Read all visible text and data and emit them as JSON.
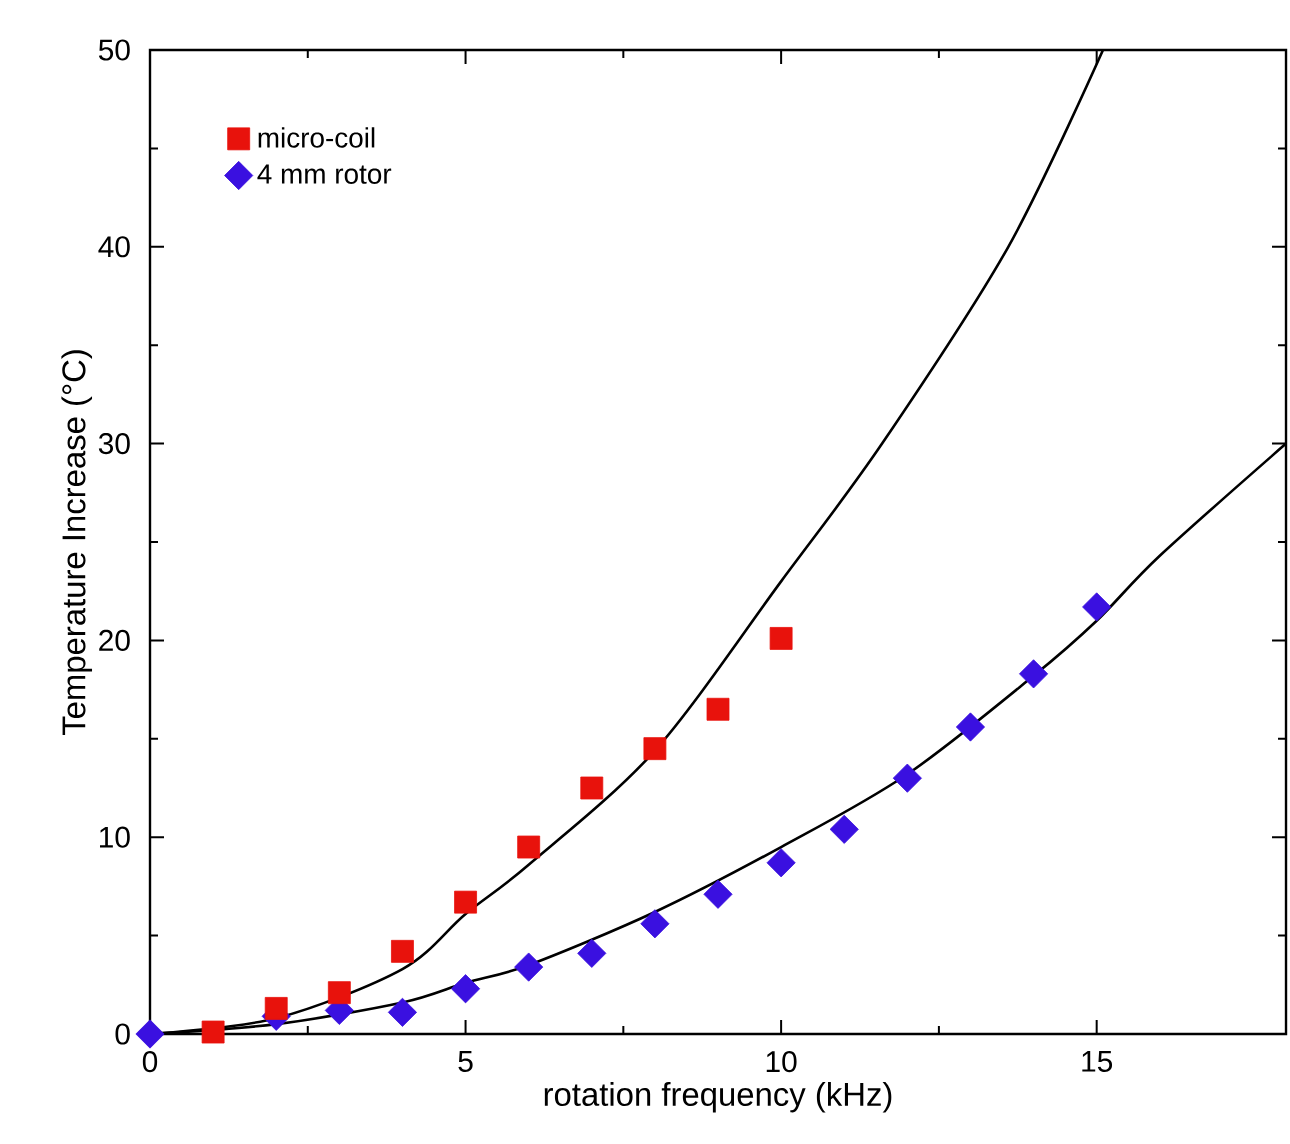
{
  "chart_data": {
    "type": "scatter",
    "xlabel": "rotation frequency (kHz)",
    "ylabel": "Temperature Increase (°C)",
    "xlim": [
      0,
      18
    ],
    "ylim": [
      0,
      50
    ],
    "xticks": [
      0,
      5,
      10,
      15
    ],
    "yticks": [
      0,
      10,
      20,
      30,
      40,
      50
    ],
    "legend": "top left",
    "grid": false,
    "series": [
      {
        "name": "micro-coil",
        "color": "#e8120c",
        "marker": "square",
        "x": [
          1,
          2,
          3,
          4,
          5,
          6,
          7,
          8,
          9,
          10
        ],
        "values": [
          0.1,
          1.3,
          2.1,
          4.2,
          6.7,
          9.5,
          12.5,
          14.5,
          16.5,
          20.1
        ]
      },
      {
        "name": "4 mm rotor",
        "color": "#3a10e0",
        "marker": "diamond",
        "x": [
          0,
          2,
          3,
          4,
          5,
          6,
          7,
          8,
          9,
          10,
          11,
          12,
          13,
          14,
          15
        ],
        "values": [
          0,
          0.9,
          1.2,
          1.1,
          2.3,
          3.4,
          4.1,
          5.6,
          7.1,
          8.7,
          10.4,
          13.0,
          15.6,
          18.3,
          21.7
        ]
      },
      {
        "type": "line",
        "color": "#000000",
        "marker": "none",
        "x": [
          0,
          2,
          4,
          5,
          6,
          8,
          10,
          11.6,
          13.6,
          15.1
        ],
        "values": [
          0,
          0.8,
          3.3,
          6.1,
          8.6,
          14.4,
          23,
          30,
          40,
          50
        ]
      },
      {
        "type": "line",
        "color": "#000000",
        "marker": "none",
        "x": [
          0,
          2,
          4,
          5,
          6,
          8,
          10,
          12,
          14,
          15,
          16,
          18
        ],
        "values": [
          0,
          0.5,
          1.6,
          2.6,
          3.5,
          6.2,
          9.5,
          13.2,
          18.2,
          21,
          24.3,
          30
        ]
      }
    ]
  }
}
